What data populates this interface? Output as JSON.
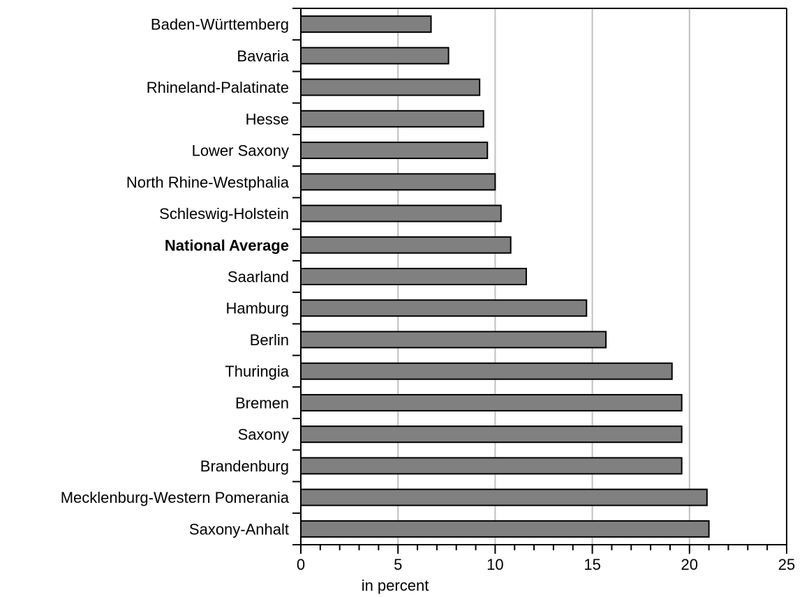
{
  "chart_data": {
    "type": "bar",
    "orientation": "horizontal",
    "categories": [
      "Baden-Württemberg",
      "Bavaria",
      "Rhineland-Palatinate",
      "Hesse",
      "Lower Saxony",
      "North Rhine-Westphalia",
      "Schleswig-Holstein",
      "National Average",
      "Saarland",
      "Hamburg",
      "Berlin",
      "Thuringia",
      "Bremen",
      "Saxony",
      "Brandenburg",
      "Mecklenburg-Western Pomerania",
      "Saxony-Anhalt"
    ],
    "values": [
      6.7,
      7.6,
      9.2,
      9.4,
      9.6,
      10.0,
      10.3,
      10.8,
      11.6,
      14.7,
      15.7,
      19.1,
      19.6,
      19.6,
      19.6,
      20.9,
      21.0
    ],
    "bold_categories": [
      "National Average"
    ],
    "xlabel": "in percent",
    "ylabel": "",
    "title": "",
    "xlim": [
      0,
      25
    ],
    "xticks": [
      0,
      5,
      10,
      15,
      20,
      25
    ],
    "minor_tick_step": 1,
    "grid": "vertical at major ticks",
    "legend": "none",
    "bar_color": "#808080",
    "bar_edge_color": "#000000",
    "grid_color": "#c0c0c0"
  }
}
